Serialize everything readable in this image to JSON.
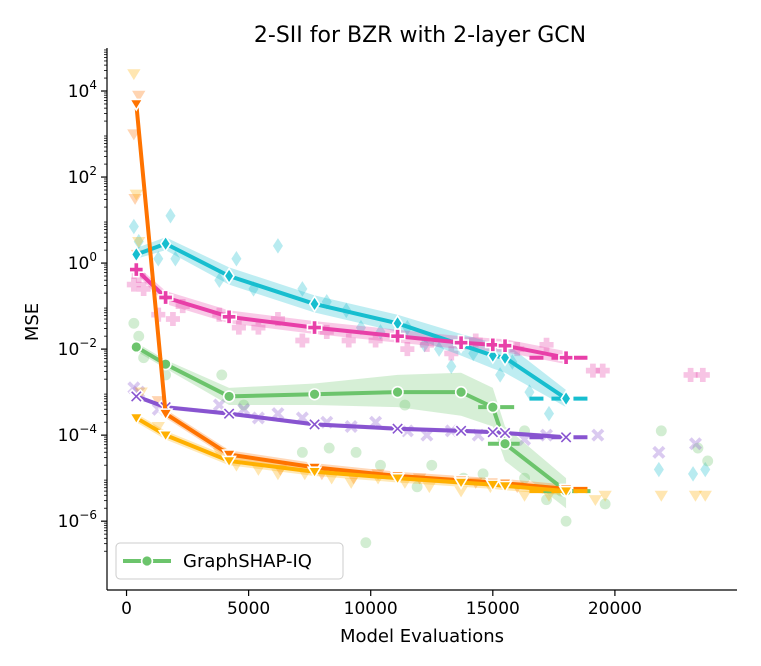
{
  "chart_data": {
    "type": "line",
    "title": "2-SII for BZR with 2-layer GCN",
    "xlabel": "Model Evaluations",
    "ylabel": "MSE",
    "y_scale": "log",
    "xlim": [
      -800,
      25000
    ],
    "ylim_log10": [
      -7.6,
      5.0
    ],
    "x_ticks": [
      0,
      5000,
      10000,
      15000,
      20000
    ],
    "x_tick_labels": [
      "0",
      "5000",
      "10000",
      "15000",
      "20000"
    ],
    "y_ticks_log10": [
      4,
      2,
      0,
      -2,
      -4,
      -6
    ],
    "y_tick_base": "10",
    "y_tick_exponents": [
      "4",
      "2",
      "0",
      "−2",
      "−4",
      "−6"
    ],
    "legend": {
      "label": "GraphSHAP-IQ",
      "placement": "lower-left"
    },
    "series": [
      {
        "name": "cyan-diamond",
        "color": "#17becf",
        "marker": "diamond",
        "x": [
          400,
          1600,
          4200,
          7700,
          11100,
          13700,
          15000,
          15500,
          18000
        ],
        "log10_y": [
          0.2,
          0.45,
          -0.3,
          -0.95,
          -1.4,
          -1.9,
          -2.15,
          -2.2,
          -3.15
        ],
        "log10_band": [
          [
            0.1,
            0.35
          ],
          [
            0.3,
            0.6
          ],
          [
            -0.5,
            -0.1
          ],
          [
            -1.15,
            -0.75
          ],
          [
            -1.6,
            -1.2
          ],
          [
            -2.15,
            -1.65
          ],
          [
            -2.45,
            -1.85
          ],
          [
            -2.55,
            -1.85
          ],
          [
            -3.35,
            -2.95
          ]
        ],
        "scatter": [
          [
            300,
            0.85
          ],
          [
            500,
            0.5
          ],
          [
            1300,
            0.1
          ],
          [
            1800,
            1.1
          ],
          [
            2000,
            0.1
          ],
          [
            3800,
            -0.4
          ],
          [
            4500,
            0.1
          ],
          [
            5200,
            -0.6
          ],
          [
            6200,
            0.4
          ],
          [
            7200,
            -0.6
          ],
          [
            8200,
            -0.9
          ],
          [
            9000,
            -1.1
          ],
          [
            9600,
            -1.5
          ],
          [
            10400,
            -1.6
          ],
          [
            11500,
            -1.5
          ],
          [
            12200,
            -1.9
          ],
          [
            12800,
            -2.0
          ],
          [
            13300,
            -2.4
          ],
          [
            14200,
            -2.1
          ],
          [
            15300,
            -2.6
          ],
          [
            15800,
            -2.3
          ],
          [
            16500,
            -3.0
          ],
          [
            17300,
            -3.5
          ],
          [
            21800,
            -4.8
          ],
          [
            23200,
            -4.9
          ],
          [
            23700,
            -4.8
          ]
        ],
        "dash_segments": [
          [
            16500,
            19000,
            -3.15
          ]
        ]
      },
      {
        "name": "pink-plus",
        "color": "#e83fa8",
        "marker": "plus",
        "x": [
          400,
          1600,
          4200,
          7700,
          11100,
          13700,
          15000,
          15500,
          18000
        ],
        "log10_y": [
          -0.15,
          -0.8,
          -1.25,
          -1.5,
          -1.7,
          -1.85,
          -1.9,
          -1.92,
          -2.2
        ],
        "log10_band": [
          [
            -0.25,
            -0.05
          ],
          [
            -0.95,
            -0.65
          ],
          [
            -1.4,
            -1.1
          ],
          [
            -1.65,
            -1.35
          ],
          [
            -1.85,
            -1.55
          ],
          [
            -2.0,
            -1.7
          ],
          [
            -2.05,
            -1.75
          ],
          [
            -2.07,
            -1.77
          ],
          [
            -2.35,
            -2.05
          ]
        ],
        "scatter": [
          [
            300,
            -0.5
          ],
          [
            500,
            -0.3
          ],
          [
            700,
            -0.6
          ],
          [
            1300,
            -1.2
          ],
          [
            1900,
            -1.3
          ],
          [
            2300,
            -1.0
          ],
          [
            3800,
            -1.2
          ],
          [
            4600,
            -1.5
          ],
          [
            5400,
            -1.5
          ],
          [
            6200,
            -1.3
          ],
          [
            7200,
            -1.8
          ],
          [
            8200,
            -1.6
          ],
          [
            9100,
            -1.8
          ],
          [
            10200,
            -1.8
          ],
          [
            11500,
            -2.0
          ],
          [
            12300,
            -1.9
          ],
          [
            13300,
            -2.1
          ],
          [
            14300,
            -1.8
          ],
          [
            16000,
            -2.0
          ],
          [
            17200,
            -1.9
          ],
          [
            19100,
            -2.5
          ],
          [
            19500,
            -2.5
          ],
          [
            23100,
            -2.6
          ],
          [
            23600,
            -2.6
          ]
        ],
        "dash_segments": [
          [
            16500,
            19000,
            -2.2
          ]
        ]
      },
      {
        "name": "green-circle",
        "color": "#6cc46c",
        "marker": "circle",
        "legend": true,
        "x": [
          400,
          1600,
          4200,
          7700,
          11100,
          13700,
          15000,
          15500,
          18000
        ],
        "log10_y": [
          -1.95,
          -2.35,
          -3.1,
          -3.05,
          -3.0,
          -3.0,
          -3.35,
          -4.2,
          -5.3
        ],
        "log10_band": [
          [
            -2.05,
            -1.85
          ],
          [
            -2.45,
            -2.25
          ],
          [
            -3.3,
            -2.9
          ],
          [
            -3.3,
            -2.8
          ],
          [
            -3.35,
            -2.6
          ],
          [
            -3.55,
            -2.55
          ],
          [
            -3.8,
            -2.9
          ],
          [
            -4.6,
            -3.8
          ],
          [
            -5.7,
            -5.0
          ]
        ],
        "scatter": [
          [
            300,
            -1.4
          ],
          [
            500,
            -1.7
          ],
          [
            700,
            -2.2
          ],
          [
            1600,
            -2.6
          ],
          [
            3900,
            -2.6
          ],
          [
            4800,
            -3.3
          ],
          [
            7200,
            -4.4
          ],
          [
            8300,
            -4.3
          ],
          [
            9400,
            -4.4
          ],
          [
            9800,
            -6.5
          ],
          [
            10400,
            -4.7
          ],
          [
            11400,
            -3.3
          ],
          [
            11900,
            -5.2
          ],
          [
            12500,
            -4.7
          ],
          [
            13800,
            -5.0
          ],
          [
            14600,
            -4.9
          ],
          [
            16300,
            -3.9
          ],
          [
            16300,
            -5.0
          ],
          [
            17200,
            -5.5
          ],
          [
            17800,
            -5.3
          ],
          [
            18000,
            -6.0
          ],
          [
            19600,
            -5.6
          ],
          [
            21900,
            -3.9
          ],
          [
            23400,
            -4.3
          ],
          [
            23800,
            -4.6
          ]
        ],
        "dash_segments": [
          [
            14400,
            16000,
            -3.35
          ],
          [
            14800,
            16100,
            -4.2
          ],
          [
            17000,
            19000,
            -5.3
          ]
        ]
      },
      {
        "name": "purple-x",
        "color": "#8854d0",
        "marker": "x",
        "x": [
          400,
          1600,
          4200,
          7700,
          11100,
          13700,
          15000,
          15500,
          18000
        ],
        "log10_y": [
          -3.1,
          -3.35,
          -3.5,
          -3.75,
          -3.85,
          -3.9,
          -3.93,
          -3.95,
          -4.05
        ],
        "log10_band": [
          [
            -3.15,
            -3.05
          ],
          [
            -3.4,
            -3.3
          ],
          [
            -3.55,
            -3.45
          ],
          [
            -3.8,
            -3.7
          ],
          [
            -3.9,
            -3.8
          ],
          [
            -3.95,
            -3.85
          ],
          [
            -3.98,
            -3.88
          ],
          [
            -4.0,
            -3.9
          ],
          [
            -4.1,
            -4.0
          ]
        ],
        "scatter": [
          [
            300,
            -2.9
          ],
          [
            500,
            -3.0
          ],
          [
            1300,
            -3.4
          ],
          [
            3800,
            -3.3
          ],
          [
            4800,
            -3.4
          ],
          [
            5400,
            -3.6
          ],
          [
            6200,
            -3.5
          ],
          [
            7200,
            -3.6
          ],
          [
            8200,
            -3.7
          ],
          [
            9200,
            -3.8
          ],
          [
            10200,
            -3.7
          ],
          [
            11500,
            -3.9
          ],
          [
            12300,
            -4.0
          ],
          [
            13300,
            -3.9
          ],
          [
            14400,
            -4.0
          ],
          [
            16300,
            -4.1
          ],
          [
            17200,
            -4.0
          ],
          [
            19300,
            -4.0
          ],
          [
            21800,
            -4.4
          ],
          [
            23300,
            -4.2
          ]
        ],
        "dash_segments": [
          [
            16500,
            19000,
            -4.05
          ]
        ]
      },
      {
        "name": "orange-triangle",
        "color": "#ff7300",
        "marker": "triangle",
        "x": [
          400,
          1600,
          4200,
          7700,
          11100,
          13700,
          15000,
          15500,
          18000
        ],
        "log10_y": [
          3.7,
          -3.5,
          -4.45,
          -4.75,
          -4.95,
          -5.05,
          -5.1,
          -5.12,
          -5.25
        ],
        "log10_band": [
          [
            3.3,
            3.8
          ],
          [
            -3.6,
            -3.4
          ],
          [
            -4.55,
            -4.35
          ],
          [
            -4.85,
            -4.65
          ],
          [
            -5.05,
            -4.85
          ],
          [
            -5.15,
            -4.95
          ],
          [
            -5.2,
            -5.0
          ],
          [
            -5.22,
            -5.02
          ],
          [
            -5.35,
            -5.15
          ]
        ],
        "scatter": [
          [
            300,
            3.0
          ],
          [
            350,
            1.5
          ],
          [
            450,
            0.2
          ],
          [
            500,
            3.9
          ],
          [
            1300,
            -3.2
          ],
          [
            4200,
            -4.6
          ],
          [
            6300,
            -4.8
          ],
          [
            8000,
            -4.9
          ],
          [
            9300,
            -5.0
          ],
          [
            10300,
            -4.9
          ],
          [
            12000,
            -5.0
          ],
          [
            14300,
            -5.1
          ],
          [
            16000,
            -5.2
          ],
          [
            18000,
            -5.3
          ]
        ],
        "dash_segments": [
          [
            16500,
            19000,
            -5.25
          ]
        ]
      },
      {
        "name": "gold-triangle",
        "color": "#ffb000",
        "marker": "triangle",
        "x": [
          400,
          1600,
          4200,
          7700,
          11100,
          13700,
          15000,
          15500,
          18000
        ],
        "log10_y": [
          -3.6,
          -4.0,
          -4.6,
          -4.85,
          -5.0,
          -5.1,
          -5.15,
          -5.18,
          -5.3
        ],
        "log10_band": [
          [
            -3.7,
            -3.5
          ],
          [
            -4.1,
            -3.9
          ],
          [
            -4.7,
            -4.5
          ],
          [
            -4.95,
            -4.75
          ],
          [
            -5.1,
            -4.9
          ],
          [
            -5.2,
            -5.0
          ],
          [
            -5.25,
            -5.05
          ],
          [
            -5.28,
            -5.08
          ],
          [
            -5.4,
            -5.2
          ]
        ],
        "scatter": [
          [
            300,
            4.4
          ],
          [
            400,
            1.6
          ],
          [
            500,
            0.5
          ],
          [
            600,
            -3.0
          ],
          [
            1300,
            -3.8
          ],
          [
            3800,
            -4.4
          ],
          [
            4500,
            -4.7
          ],
          [
            5400,
            -4.8
          ],
          [
            6200,
            -4.9
          ],
          [
            7300,
            -4.9
          ],
          [
            8400,
            -5.0
          ],
          [
            9200,
            -5.1
          ],
          [
            10300,
            -5.0
          ],
          [
            11400,
            -5.1
          ],
          [
            12400,
            -5.2
          ],
          [
            13700,
            -5.3
          ],
          [
            14900,
            -5.2
          ],
          [
            16300,
            -5.4
          ],
          [
            17300,
            -5.4
          ],
          [
            19200,
            -5.5
          ],
          [
            19600,
            -5.4
          ],
          [
            21900,
            -5.4
          ],
          [
            23300,
            -5.4
          ],
          [
            23700,
            -5.4
          ]
        ],
        "dash_segments": [
          [
            16500,
            19000,
            -5.3
          ]
        ]
      }
    ]
  }
}
